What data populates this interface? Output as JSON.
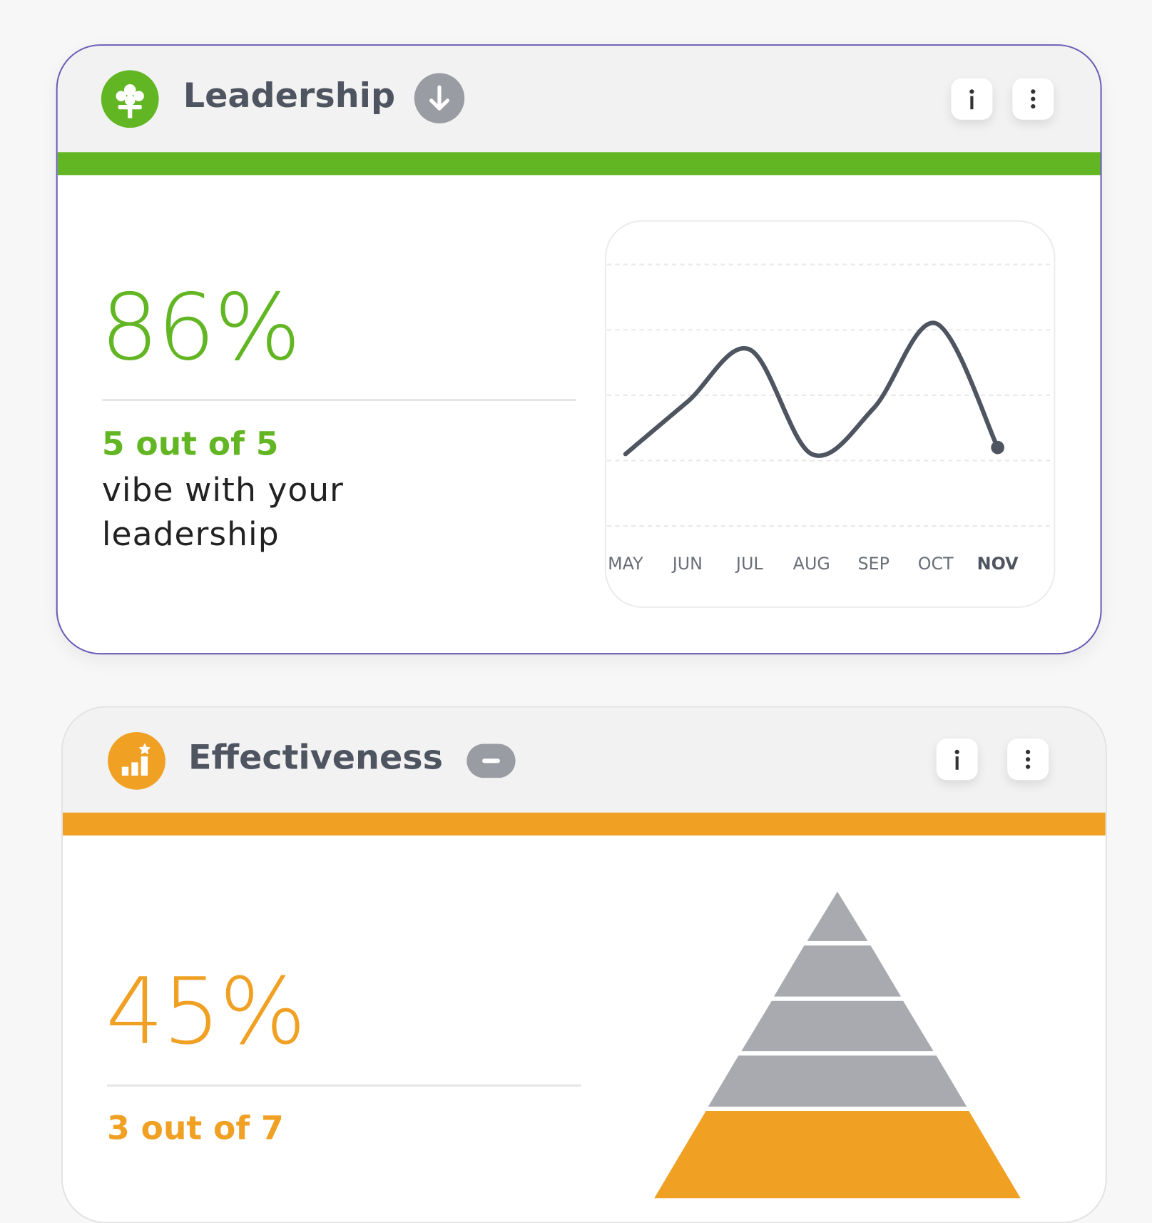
{
  "cards": [
    {
      "title": "Leadership",
      "percent": "86%",
      "score": "5 out of 5",
      "description": "vibe with your leadership",
      "chart": {
        "type": "line",
        "categories": [
          "MAY",
          "JUN",
          "JUL",
          "AUG",
          "SEP",
          "OCT",
          "NOV"
        ],
        "values": [
          1.1,
          1.9,
          2.7,
          1.1,
          1.8,
          3.1,
          1.2
        ],
        "ylim": [
          0,
          4
        ],
        "yticks": [
          0,
          1,
          2,
          3,
          4
        ],
        "grid": true,
        "color": "#4f5560"
      }
    },
    {
      "title": "Effectiveness",
      "percent": "45%",
      "score": "3 out of 7"
    }
  ]
}
